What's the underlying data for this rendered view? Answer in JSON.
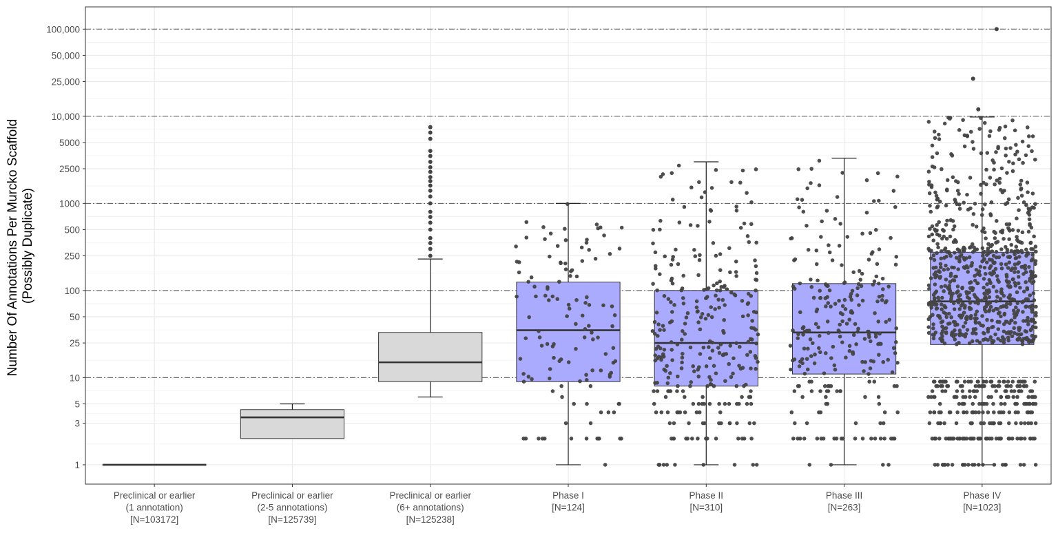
{
  "chart_data": {
    "type": "boxplot",
    "ylabel": [
      "Number Of Annotations Per Murcko Scaffold",
      "(Possibly Duplicate)"
    ],
    "xlabel": "",
    "yscale": "log",
    "ylim": [
      0.6,
      180000
    ],
    "yticks": [
      1,
      3,
      5,
      10,
      25,
      50,
      100,
      250,
      500,
      1000,
      2500,
      5000,
      10000,
      25000,
      50000,
      100000
    ],
    "ytick_labels": [
      "1",
      "3",
      "5",
      "10",
      "25",
      "50",
      "100",
      "250",
      "500",
      "1000",
      "2500",
      "5000",
      "10,000",
      "25,000",
      "50,000",
      "100,000"
    ],
    "reference_lines": [
      10,
      100,
      1000,
      10000,
      100000
    ],
    "fill_colors": {
      "preclinical": "#d9d9d9",
      "clinical": "#aaaaff"
    },
    "point_color": "#444444",
    "categories": [
      {
        "label": [
          "Preclinical or earlier",
          "(1 annotation)",
          "[N=103172]"
        ],
        "group": "preclinical",
        "min": 1,
        "q1": 1,
        "median": 1,
        "q3": 1,
        "max": 1,
        "jitter": false,
        "n_points": 0,
        "outliers": []
      },
      {
        "label": [
          "Preclinical or earlier",
          "(2-5 annotations)",
          "[N=125739]"
        ],
        "group": "preclinical",
        "min": 2,
        "q1": 2,
        "median": 3.5,
        "q3": 4.3,
        "max": 5,
        "jitter": false,
        "n_points": 0,
        "outliers": []
      },
      {
        "label": [
          "Preclinical or earlier",
          "(6+ annotations)",
          "[N=125238]"
        ],
        "group": "preclinical",
        "min": 6,
        "q1": 9,
        "median": 15,
        "q3": 33,
        "max": 230,
        "jitter": false,
        "n_points": 0,
        "outliers": [
          250,
          300,
          350,
          400,
          500,
          600,
          700,
          800,
          1000,
          1200,
          1400,
          1600,
          1800,
          2000,
          2300,
          2600,
          3000,
          3500,
          4000,
          5500,
          6500,
          7500
        ]
      },
      {
        "label": [
          "Phase I",
          "[N=124]"
        ],
        "group": "clinical",
        "min": 1,
        "q1": 9,
        "median": 35,
        "q3": 125,
        "max": 1000,
        "jitter": true,
        "n_points": 124,
        "outliers": []
      },
      {
        "label": [
          "Phase II",
          "[N=310]"
        ],
        "group": "clinical",
        "min": 1,
        "q1": 8,
        "median": 25,
        "q3": 100,
        "max": 3000,
        "jitter": true,
        "n_points": 310,
        "outliers": []
      },
      {
        "label": [
          "Phase III",
          "[N=263]"
        ],
        "group": "clinical",
        "min": 1,
        "q1": 11,
        "median": 33,
        "q3": 120,
        "max": 3300,
        "jitter": true,
        "n_points": 263,
        "outliers": []
      },
      {
        "label": [
          "Phase IV",
          "[N=1023]"
        ],
        "group": "clinical",
        "min": 1,
        "q1": 24,
        "median": 75,
        "q3": 275,
        "max": 9800,
        "jitter": true,
        "n_points": 1023,
        "outliers": [
          12000,
          27000,
          100000
        ]
      }
    ]
  }
}
